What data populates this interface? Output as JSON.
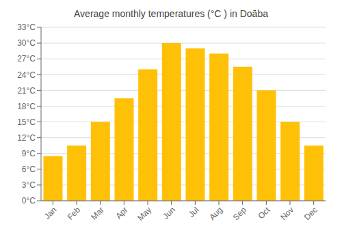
{
  "chart_data": {
    "type": "bar",
    "title": "Average monthly temperatures (°C ) in Doāba",
    "categories": [
      "Jan",
      "Feb",
      "Mar",
      "Apr",
      "May",
      "Jun",
      "Jul",
      "Aug",
      "Sep",
      "Oct",
      "Nov",
      "Dec"
    ],
    "values": [
      8.5,
      10.5,
      15.0,
      19.5,
      25.0,
      30.0,
      29.0,
      28.0,
      25.5,
      21.0,
      15.0,
      10.5
    ],
    "color": "#FFC107",
    "ylim": [
      0,
      33
    ],
    "yticks": [
      {
        "value": 0,
        "label": "0°C"
      },
      {
        "value": 3,
        "label": "3°C"
      },
      {
        "value": 6,
        "label": "6°C"
      },
      {
        "value": 9,
        "label": "9°C"
      },
      {
        "value": 12,
        "label": "12°C"
      },
      {
        "value": 15,
        "label": "15°C"
      },
      {
        "value": 18,
        "label": "18°C"
      },
      {
        "value": 21,
        "label": "21°C"
      },
      {
        "value": 24,
        "label": "24°C"
      },
      {
        "value": 27,
        "label": "27°C"
      },
      {
        "value": 30,
        "label": "30°C"
      },
      {
        "value": 33,
        "label": "33°C"
      }
    ],
    "grid": true
  }
}
